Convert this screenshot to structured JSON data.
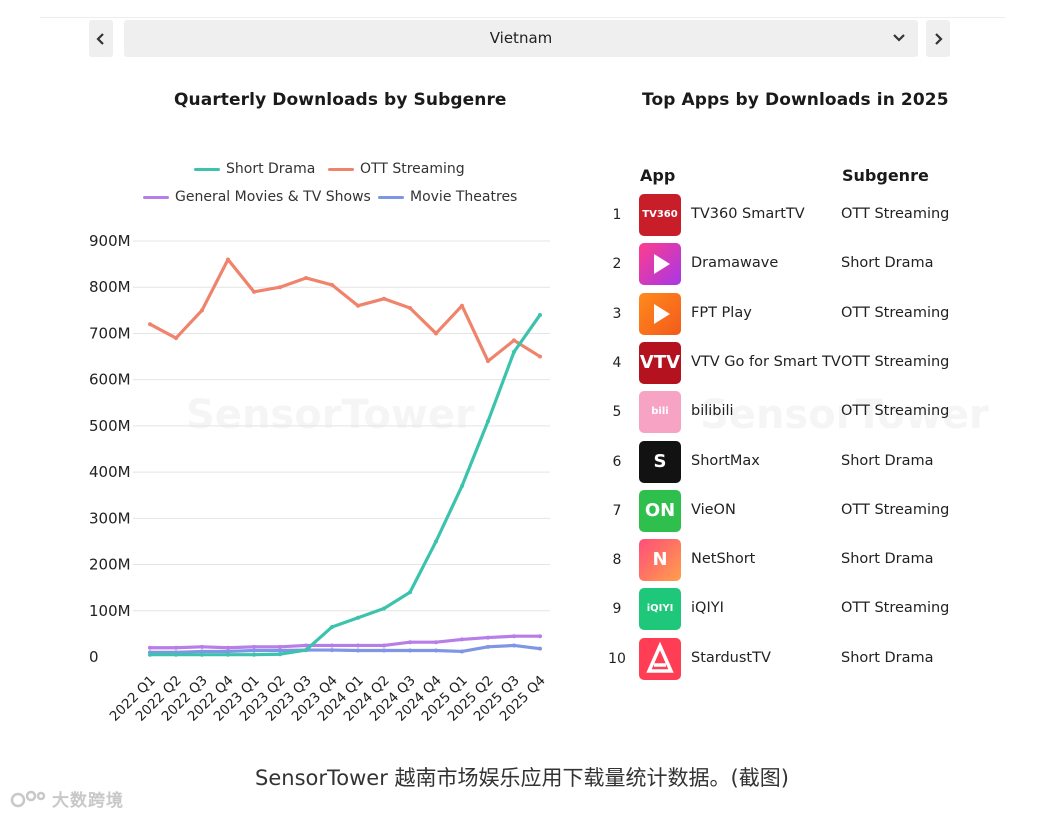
{
  "nav": {
    "prev_icon": "chevron-left-icon",
    "next_icon": "chevron-right-icon",
    "selected_country": "Vietnam"
  },
  "left_title": "Quarterly Downloads by Subgenre",
  "right_title": "Top Apps by Downloads in 2025",
  "watermark_text": "SensorTower",
  "colors": {
    "short_drama": "#3cc3ad",
    "ott": "#f0836b",
    "general": "#b77ee8",
    "theatres": "#7f96e6"
  },
  "chart_data": {
    "type": "line",
    "title": "Quarterly Downloads by Subgenre",
    "xlabel": "",
    "ylabel": "",
    "ylim": [
      0,
      900
    ],
    "y_ticks": [
      "0",
      "100M",
      "200M",
      "300M",
      "400M",
      "500M",
      "600M",
      "700M",
      "800M",
      "900M"
    ],
    "y_tick_values": [
      0,
      100,
      200,
      300,
      400,
      500,
      600,
      700,
      800,
      900
    ],
    "grid": true,
    "legend_position": "top",
    "categories": [
      "2022 Q1",
      "2022 Q2",
      "2022 Q3",
      "2022 Q4",
      "2023 Q1",
      "2023 Q2",
      "2023 Q3",
      "2023 Q4",
      "2024 Q1",
      "2024 Q2",
      "2024 Q3",
      "2024 Q4",
      "2025 Q1",
      "2025 Q2",
      "2025 Q3",
      "2025 Q4"
    ],
    "series": [
      {
        "name": "Short Drama",
        "color": "#3cc3ad",
        "values": [
          5,
          5,
          5,
          5,
          5,
          6,
          15,
          65,
          85,
          105,
          140,
          250,
          370,
          510,
          660,
          740
        ]
      },
      {
        "name": "OTT Streaming",
        "color": "#f0836b",
        "values": [
          720,
          690,
          750,
          860,
          790,
          800,
          820,
          805,
          760,
          775,
          755,
          700,
          760,
          640,
          685,
          650
        ]
      },
      {
        "name": "General Movies & TV Shows",
        "color": "#b77ee8",
        "values": [
          20,
          20,
          22,
          20,
          22,
          22,
          25,
          25,
          25,
          25,
          32,
          32,
          38,
          42,
          45,
          45
        ]
      },
      {
        "name": "Movie Theatres",
        "color": "#7f96e6",
        "values": [
          10,
          10,
          12,
          12,
          14,
          14,
          15,
          15,
          14,
          14,
          14,
          14,
          12,
          22,
          25,
          18
        ]
      }
    ]
  },
  "table": {
    "col_app": "App",
    "col_subgenre": "Subgenre",
    "rows": [
      {
        "rank": "1",
        "name": "TV360 SmartTV",
        "subgenre": "OTT Streaming",
        "icon": "tv360-icon",
        "icon_text": "TV360"
      },
      {
        "rank": "2",
        "name": "Dramawave",
        "subgenre": "Short Drama",
        "icon": "dramawave-icon",
        "icon_text": ""
      },
      {
        "rank": "3",
        "name": "FPT Play",
        "subgenre": "OTT Streaming",
        "icon": "fpt-play-icon",
        "icon_text": ""
      },
      {
        "rank": "4",
        "name": "VTV Go for Smart TV",
        "subgenre": "OTT Streaming",
        "icon": "vtv-go-icon",
        "icon_text": "VTV"
      },
      {
        "rank": "5",
        "name": "bilibili",
        "subgenre": "OTT Streaming",
        "icon": "bilibili-icon",
        "icon_text": "bili"
      },
      {
        "rank": "6",
        "name": "ShortMax",
        "subgenre": "Short Drama",
        "icon": "shortmax-icon",
        "icon_text": "S"
      },
      {
        "rank": "7",
        "name": "VieON",
        "subgenre": "OTT Streaming",
        "icon": "vieon-icon",
        "icon_text": "ON"
      },
      {
        "rank": "8",
        "name": "NetShort",
        "subgenre": "Short Drama",
        "icon": "netshort-icon",
        "icon_text": "N"
      },
      {
        "rank": "9",
        "name": "iQIYI",
        "subgenre": "OTT Streaming",
        "icon": "iqiyi-icon",
        "icon_text": "iQIYI"
      },
      {
        "rank": "10",
        "name": "StardustTV",
        "subgenre": "Short Drama",
        "icon": "stardusttv-icon",
        "icon_text": ""
      }
    ]
  },
  "caption": "SensorTower 越南市场娱乐应用下载量统计数据。(截图)",
  "brand_text": "大数跨境"
}
